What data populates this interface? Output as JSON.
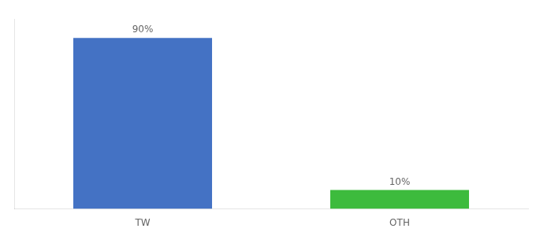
{
  "chart_data": {
    "type": "bar",
    "categories": [
      "TW",
      "OTH"
    ],
    "values": [
      90,
      10
    ],
    "value_labels": [
      "90%",
      "10%"
    ],
    "colors": [
      "#4472c4",
      "#3dbb3d"
    ],
    "ylim": [
      0,
      100
    ],
    "data_labels": true,
    "tick_labels": "x",
    "grid": false
  }
}
